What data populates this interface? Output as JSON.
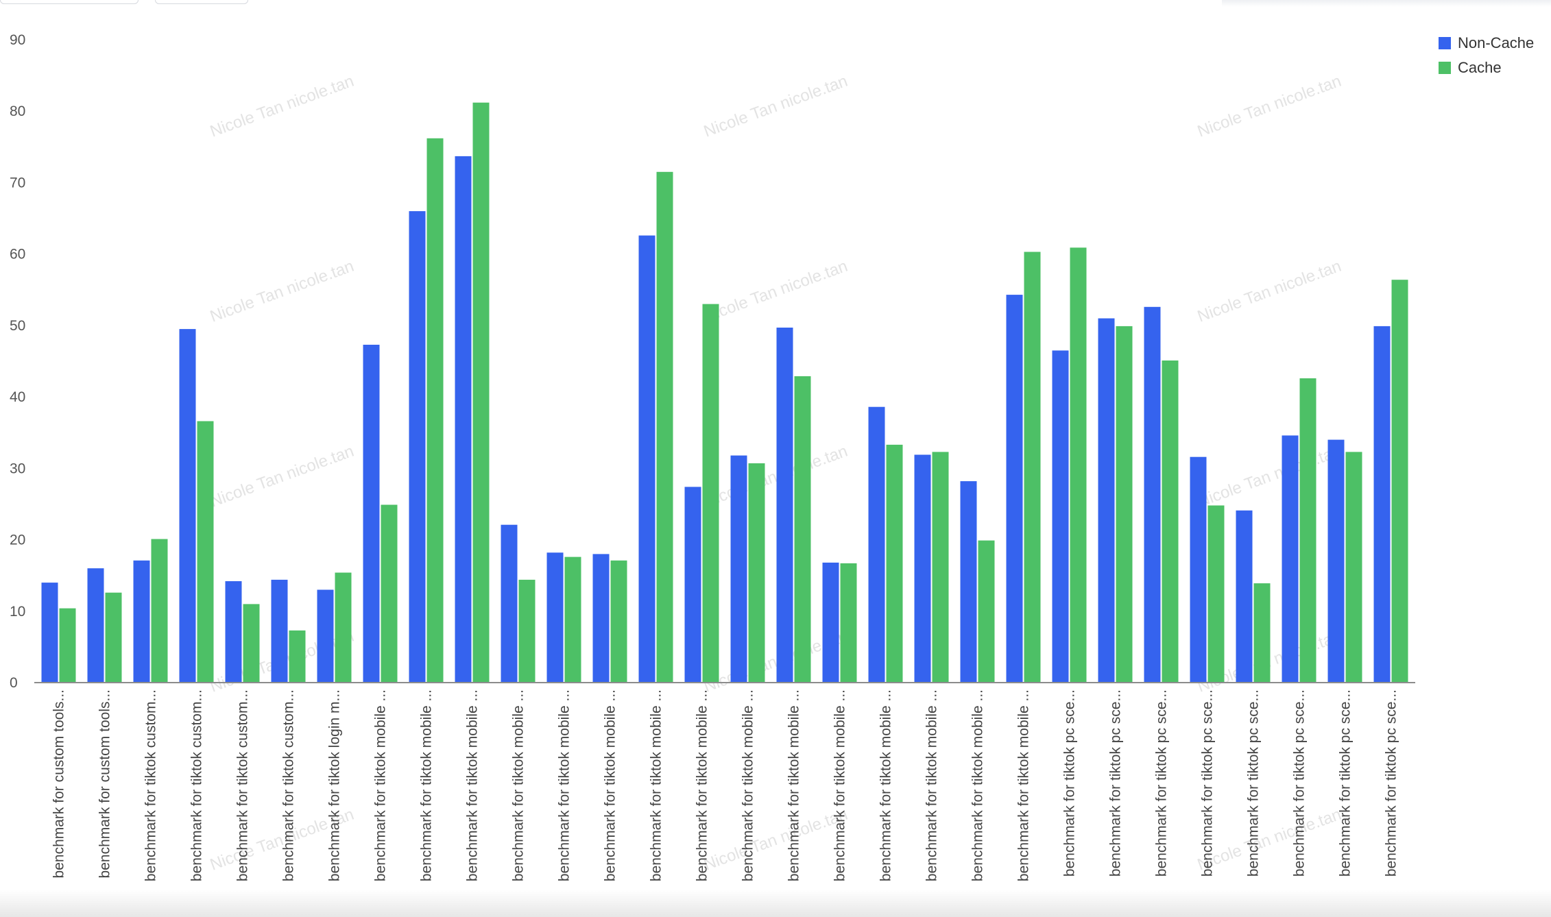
{
  "chart_data": {
    "type": "bar",
    "title": "",
    "xlabel": "",
    "ylabel": "",
    "ylim": [
      0,
      90
    ],
    "yticks": [
      0,
      10,
      20,
      30,
      40,
      50,
      60,
      70,
      80,
      90
    ],
    "grid": false,
    "legend_position": "top-right",
    "colors": {
      "Non-Cache": "#3563ee",
      "Cache": "#4dc066"
    },
    "watermark": "Nicole Tan nicole.tan",
    "categories": [
      "benchmark for custom tools...",
      "benchmark for custom tools...",
      "benchmark for tiktok custom...",
      "benchmark for tiktok custom...",
      "benchmark for tiktok custom...",
      "benchmark for tiktok custom...",
      "benchmark for tiktok login m...",
      "benchmark for tiktok mobile ...",
      "benchmark for tiktok mobile ...",
      "benchmark for tiktok mobile ...",
      "benchmark for tiktok mobile ...",
      "benchmark for tiktok mobile ...",
      "benchmark for tiktok mobile ...",
      "benchmark for tiktok mobile ...",
      "benchmark for tiktok mobile ...",
      "benchmark for tiktok mobile ...",
      "benchmark for tiktok mobile ...",
      "benchmark for tiktok mobile ...",
      "benchmark for tiktok mobile ...",
      "benchmark for tiktok mobile ...",
      "benchmark for tiktok mobile ...",
      "benchmark for tiktok mobile ...",
      "benchmark for tiktok pc sce...",
      "benchmark for tiktok pc sce...",
      "benchmark for tiktok pc sce...",
      "benchmark for tiktok pc sce...",
      "benchmark for tiktok pc sce...",
      "benchmark for tiktok pc sce...",
      "benchmark for tiktok pc sce...",
      "benchmark for tiktok pc sce..."
    ],
    "series": [
      {
        "name": "Non-Cache",
        "values": [
          14,
          16,
          17.1,
          49.5,
          14.2,
          14.4,
          13,
          47.3,
          66,
          73.7,
          22.1,
          18.2,
          18,
          62.6,
          27.4,
          31.8,
          49.7,
          16.8,
          38.6,
          31.9,
          28.2,
          54.3,
          46.5,
          51,
          52.6,
          31.6,
          24.1,
          34.6,
          34,
          49.9
        ]
      },
      {
        "name": "Cache",
        "values": [
          10.4,
          12.6,
          20.1,
          36.6,
          11,
          7.3,
          15.4,
          24.9,
          76.2,
          81.2,
          14.4,
          17.6,
          17.1,
          71.5,
          53,
          30.7,
          42.9,
          16.7,
          33.3,
          32.3,
          19.9,
          60.3,
          60.9,
          49.9,
          45.1,
          24.8,
          13.9,
          42.6,
          32.3,
          56.4
        ]
      }
    ]
  }
}
